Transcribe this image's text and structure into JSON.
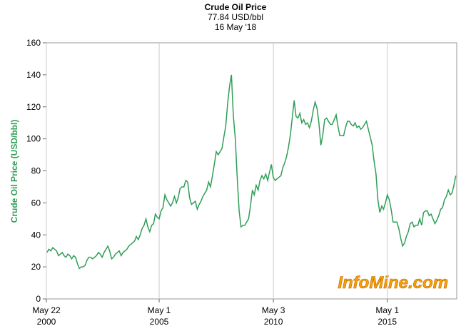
{
  "chart_data": {
    "type": "line",
    "title": "Crude Oil Price",
    "subtitle": "77.84 USD/bbl",
    "date_label": "16 May '18",
    "y_label": "Crude Oil Price (USD/bbl)",
    "watermark": "InfoMine.com",
    "xlim": [
      "2000-05-22",
      "2018-05-16"
    ],
    "xticks": [
      {
        "value": "2000-05-22",
        "label": "May 22\n2000"
      },
      {
        "value": "2005-05-01",
        "label": "May 1\n2005"
      },
      {
        "value": "2010-05-03",
        "label": "May 3\n2010"
      },
      {
        "value": "2015-05-01",
        "label": "May 1\n2015"
      }
    ],
    "ylim": [
      0,
      160
    ],
    "yticks": [
      0,
      20,
      40,
      60,
      80,
      100,
      120,
      140,
      160
    ],
    "grid": "x",
    "x": [
      "2000-06",
      "2000-07",
      "2000-08",
      "2000-09",
      "2000-10",
      "2000-11",
      "2000-12",
      "2001-01",
      "2001-02",
      "2001-03",
      "2001-04",
      "2001-05",
      "2001-06",
      "2001-07",
      "2001-08",
      "2001-09",
      "2001-10",
      "2001-11",
      "2001-12",
      "2002-01",
      "2002-02",
      "2002-03",
      "2002-04",
      "2002-05",
      "2002-06",
      "2002-07",
      "2002-08",
      "2002-09",
      "2002-10",
      "2002-11",
      "2002-12",
      "2003-01",
      "2003-02",
      "2003-03",
      "2003-04",
      "2003-05",
      "2003-06",
      "2003-07",
      "2003-08",
      "2003-09",
      "2003-10",
      "2003-11",
      "2003-12",
      "2004-01",
      "2004-02",
      "2004-03",
      "2004-04",
      "2004-05",
      "2004-06",
      "2004-07",
      "2004-08",
      "2004-09",
      "2004-10",
      "2004-11",
      "2004-12",
      "2005-01",
      "2005-02",
      "2005-03",
      "2005-04",
      "2005-05",
      "2005-06",
      "2005-07",
      "2005-08",
      "2005-09",
      "2005-10",
      "2005-11",
      "2005-12",
      "2006-01",
      "2006-02",
      "2006-03",
      "2006-04",
      "2006-05",
      "2006-06",
      "2006-07",
      "2006-08",
      "2006-09",
      "2006-10",
      "2006-11",
      "2006-12",
      "2007-01",
      "2007-02",
      "2007-03",
      "2007-04",
      "2007-05",
      "2007-06",
      "2007-07",
      "2007-08",
      "2007-09",
      "2007-10",
      "2007-11",
      "2007-12",
      "2008-01",
      "2008-02",
      "2008-03",
      "2008-04",
      "2008-05",
      "2008-06",
      "2008-07",
      "2008-08",
      "2008-09",
      "2008-10",
      "2008-11",
      "2008-12",
      "2009-01",
      "2009-02",
      "2009-03",
      "2009-04",
      "2009-05",
      "2009-06",
      "2009-07",
      "2009-08",
      "2009-09",
      "2009-10",
      "2009-11",
      "2009-12",
      "2010-01",
      "2010-02",
      "2010-03",
      "2010-04",
      "2010-05",
      "2010-06",
      "2010-07",
      "2010-08",
      "2010-09",
      "2010-10",
      "2010-11",
      "2010-12",
      "2011-01",
      "2011-02",
      "2011-03",
      "2011-04",
      "2011-05",
      "2011-06",
      "2011-07",
      "2011-08",
      "2011-09",
      "2011-10",
      "2011-11",
      "2011-12",
      "2012-01",
      "2012-02",
      "2012-03",
      "2012-04",
      "2012-05",
      "2012-06",
      "2012-07",
      "2012-08",
      "2012-09",
      "2012-10",
      "2012-11",
      "2012-12",
      "2013-01",
      "2013-02",
      "2013-03",
      "2013-04",
      "2013-05",
      "2013-06",
      "2013-07",
      "2013-08",
      "2013-09",
      "2013-10",
      "2013-11",
      "2013-12",
      "2014-01",
      "2014-02",
      "2014-03",
      "2014-04",
      "2014-05",
      "2014-06",
      "2014-07",
      "2014-08",
      "2014-09",
      "2014-10",
      "2014-11",
      "2014-12",
      "2015-01",
      "2015-02",
      "2015-03",
      "2015-04",
      "2015-05",
      "2015-06",
      "2015-07",
      "2015-08",
      "2015-09",
      "2015-10",
      "2015-11",
      "2015-12",
      "2016-01",
      "2016-02",
      "2016-03",
      "2016-04",
      "2016-05",
      "2016-06",
      "2016-07",
      "2016-08",
      "2016-09",
      "2016-10",
      "2016-11",
      "2016-12",
      "2017-01",
      "2017-02",
      "2017-03",
      "2017-04",
      "2017-05",
      "2017-06",
      "2017-07",
      "2017-08",
      "2017-09",
      "2017-10",
      "2017-11",
      "2017-12",
      "2018-01",
      "2018-02",
      "2018-03",
      "2018-04",
      "2018-05"
    ],
    "series": [
      {
        "name": "Crude Oil Price",
        "color": "#2f9e57",
        "values": [
          29,
          31,
          30,
          32,
          31,
          30,
          27,
          28,
          29,
          27,
          26,
          28,
          27,
          25,
          27,
          26,
          22,
          19,
          20,
          20,
          21,
          24,
          26,
          26,
          25,
          26,
          27,
          29,
          28,
          26,
          29,
          31,
          33,
          30,
          25,
          26,
          28,
          29,
          30,
          27,
          29,
          30,
          31,
          33,
          34,
          35,
          36,
          39,
          37,
          40,
          44,
          46,
          50,
          45,
          42,
          46,
          47,
          53,
          51,
          50,
          55,
          57,
          65,
          62,
          60,
          58,
          60,
          64,
          60,
          63,
          69,
          70,
          70,
          74,
          73,
          63,
          59,
          60,
          61,
          56,
          59,
          61,
          64,
          66,
          68,
          73,
          70,
          77,
          84,
          92,
          90,
          92,
          94,
          101,
          108,
          122,
          133,
          140,
          114,
          100,
          76,
          55,
          45,
          46,
          46,
          48,
          50,
          58,
          68,
          65,
          71,
          68,
          74,
          77,
          75,
          78,
          74,
          79,
          84,
          76,
          74,
          75,
          76,
          77,
          82,
          85,
          89,
          95,
          103,
          113,
          124,
          114,
          113,
          116,
          110,
          112,
          109,
          110,
          107,
          111,
          118,
          123,
          119,
          110,
          96,
          102,
          112,
          113,
          111,
          109,
          109,
          112,
          115,
          108,
          102,
          102,
          102,
          107,
          111,
          111,
          109,
          108,
          110,
          107,
          108,
          106,
          107,
          109,
          111,
          106,
          101,
          96,
          86,
          78,
          62,
          54,
          58,
          56,
          60,
          65,
          62,
          56,
          48,
          48,
          48,
          44,
          38,
          33,
          35,
          39,
          42,
          47,
          48,
          45,
          46,
          46,
          50,
          46,
          54,
          55,
          55,
          52,
          53,
          50,
          47,
          49,
          52,
          56,
          57,
          62,
          64,
          68,
          65,
          66,
          71,
          77
        ]
      }
    ]
  }
}
